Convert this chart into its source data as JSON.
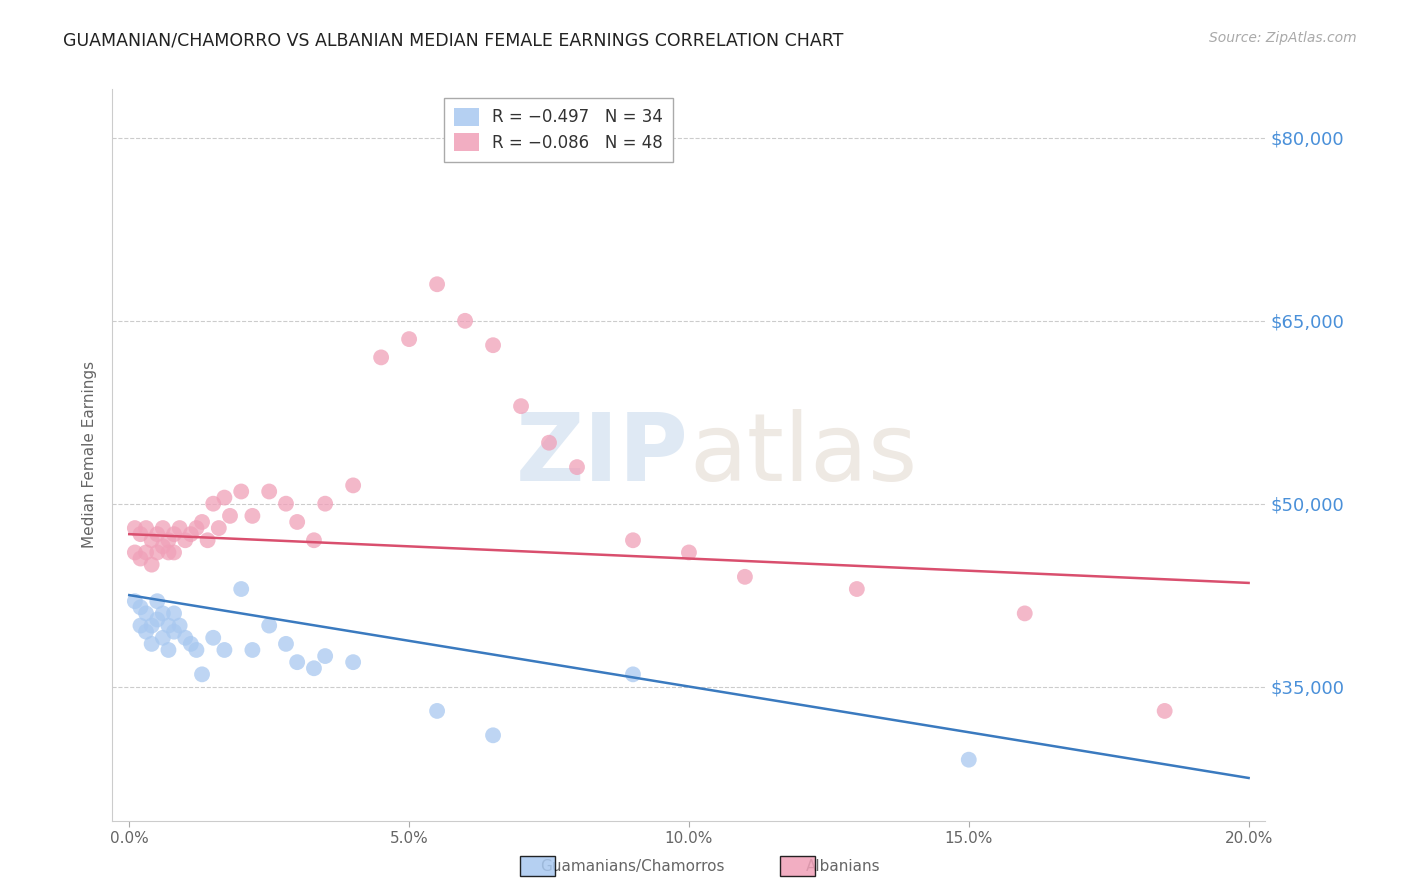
{
  "title": "GUAMANIAN/CHAMORRO VS ALBANIAN MEDIAN FEMALE EARNINGS CORRELATION CHART",
  "source": "Source: ZipAtlas.com",
  "ylabel": "Median Female Earnings",
  "xlabel_ticks": [
    "0.0%",
    "5.0%",
    "10.0%",
    "15.0%",
    "20.0%"
  ],
  "xlabel_vals": [
    0.0,
    0.05,
    0.1,
    0.15,
    0.2
  ],
  "ytick_labels": [
    "$35,000",
    "$50,000",
    "$65,000",
    "$80,000"
  ],
  "ytick_vals": [
    35000,
    50000,
    65000,
    80000
  ],
  "ylim": [
    24000,
    84000
  ],
  "xlim": [
    -0.003,
    0.203
  ],
  "blue_color": "#a8c8f0",
  "pink_color": "#f0a0b8",
  "blue_line_color": "#3a7abf",
  "pink_line_color": "#d94f6e",
  "watermark_zip": "ZIP",
  "watermark_atlas": "atlas",
  "guamanian_x": [
    0.001,
    0.002,
    0.002,
    0.003,
    0.003,
    0.004,
    0.004,
    0.005,
    0.005,
    0.006,
    0.006,
    0.007,
    0.007,
    0.008,
    0.008,
    0.009,
    0.01,
    0.011,
    0.012,
    0.013,
    0.015,
    0.017,
    0.02,
    0.022,
    0.025,
    0.028,
    0.03,
    0.033,
    0.035,
    0.04,
    0.055,
    0.065,
    0.09,
    0.15
  ],
  "guamanian_y": [
    42000,
    41500,
    40000,
    41000,
    39500,
    40000,
    38500,
    42000,
    40500,
    41000,
    39000,
    40000,
    38000,
    41000,
    39500,
    40000,
    39000,
    38500,
    38000,
    36000,
    39000,
    38000,
    43000,
    38000,
    40000,
    38500,
    37000,
    36500,
    37500,
    37000,
    33000,
    31000,
    36000,
    29000
  ],
  "albanian_x": [
    0.001,
    0.001,
    0.002,
    0.002,
    0.003,
    0.003,
    0.004,
    0.004,
    0.005,
    0.005,
    0.006,
    0.006,
    0.007,
    0.007,
    0.008,
    0.008,
    0.009,
    0.01,
    0.011,
    0.012,
    0.013,
    0.014,
    0.015,
    0.016,
    0.017,
    0.018,
    0.02,
    0.022,
    0.025,
    0.028,
    0.03,
    0.033,
    0.035,
    0.04,
    0.045,
    0.05,
    0.055,
    0.06,
    0.065,
    0.07,
    0.075,
    0.08,
    0.09,
    0.1,
    0.11,
    0.13,
    0.16,
    0.185
  ],
  "albanian_y": [
    48000,
    46000,
    47500,
    45500,
    48000,
    46000,
    47000,
    45000,
    47500,
    46000,
    48000,
    46500,
    47000,
    46000,
    47500,
    46000,
    48000,
    47000,
    47500,
    48000,
    48500,
    47000,
    50000,
    48000,
    50500,
    49000,
    51000,
    49000,
    51000,
    50000,
    48500,
    47000,
    50000,
    51500,
    62000,
    63500,
    68000,
    65000,
    63000,
    58000,
    55000,
    53000,
    47000,
    46000,
    44000,
    43000,
    41000,
    33000
  ],
  "guam_trendline_y0": 42500,
  "guam_trendline_y1": 27500,
  "alba_trendline_y0": 47500,
  "alba_trendline_y1": 43500
}
